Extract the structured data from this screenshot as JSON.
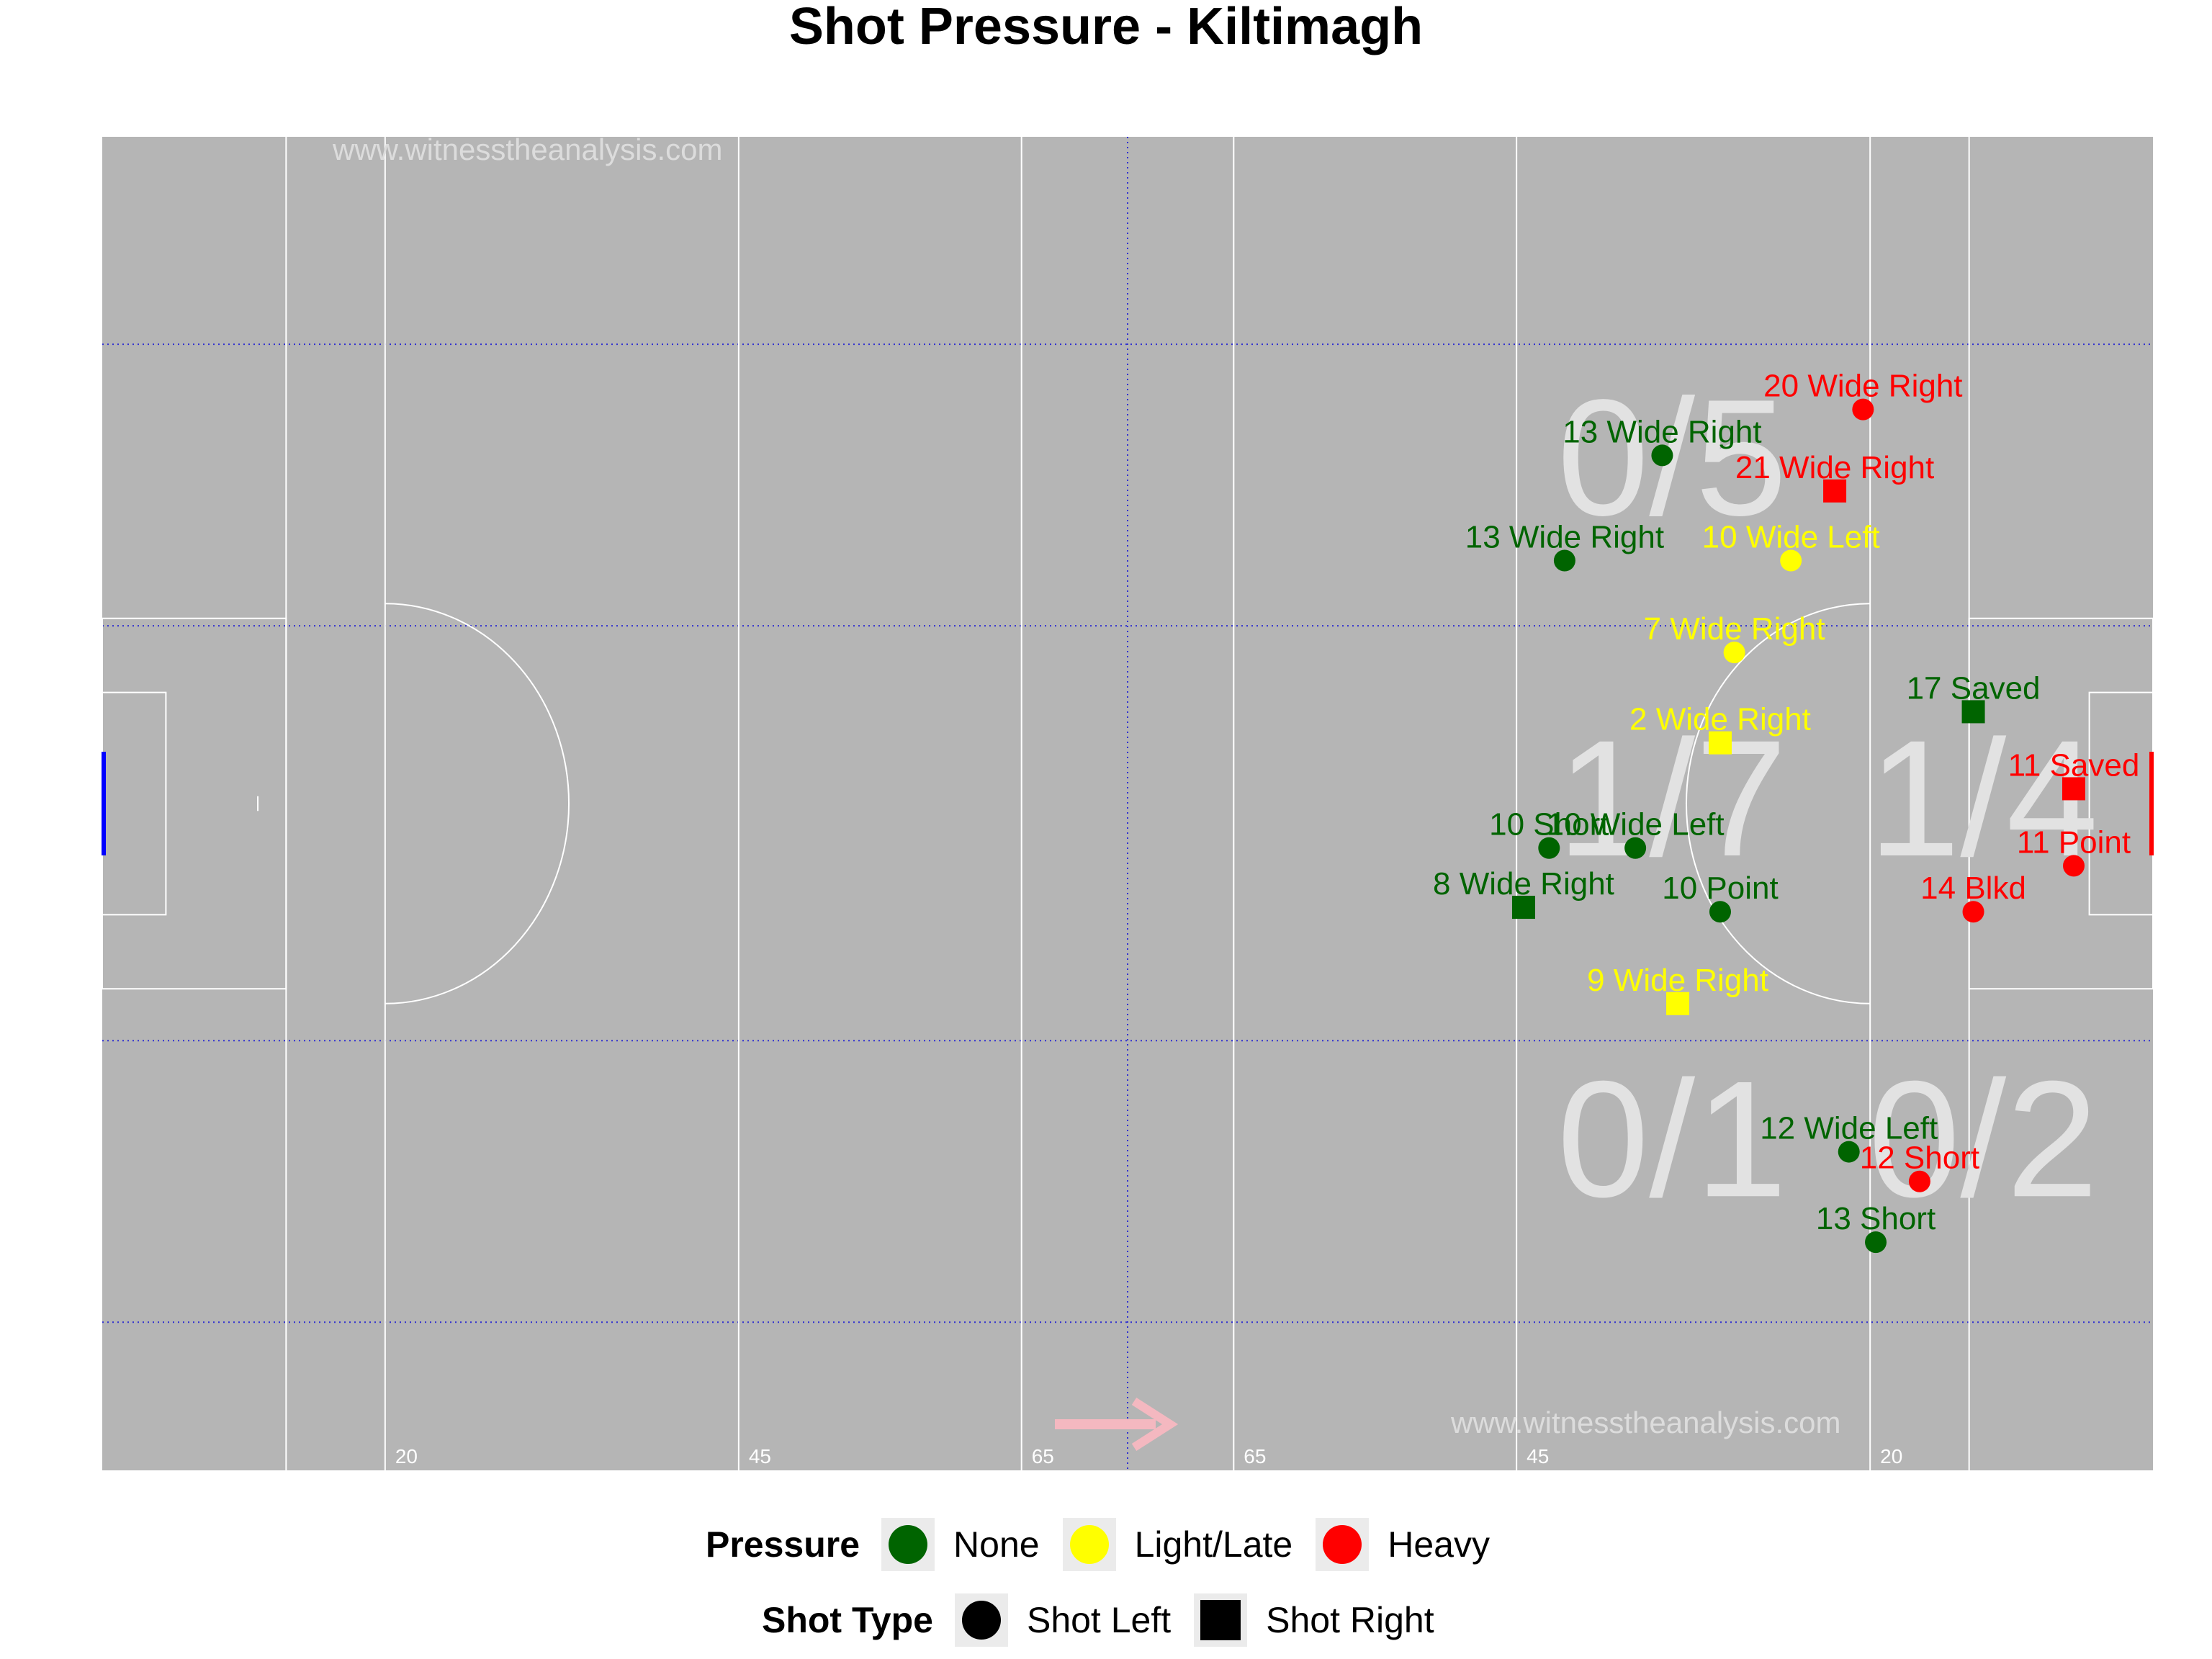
{
  "title": "Shot Pressure - Kiltimagh",
  "watermark": "www.witnesstheanalysis.com",
  "colors": {
    "pitch": "#b5b5b5",
    "line": "#ffffff",
    "zone": "#3030d0",
    "none": "#006400",
    "light": "#ffff00",
    "heavy": "#ff0000",
    "zone_text": "#e2e2e2",
    "arrow": "#f4b8c0",
    "left_goal": "#0000ff",
    "right_goal": "#ff0000"
  },
  "distance_markers": [
    "20",
    "45",
    "65",
    "65",
    "45",
    "20"
  ],
  "chart_data": {
    "type": "scatter",
    "title": "Shot Pressure - Kiltimagh",
    "xlim": [
      0,
      145
    ],
    "ylim": [
      0,
      90
    ],
    "grid": true,
    "legend_placement": "bottom",
    "zones": [
      {
        "label": "0/5",
        "x": 111,
        "y": 68
      },
      {
        "label": "1/7",
        "x": 111,
        "y": 45
      },
      {
        "label": "1/4",
        "x": 133,
        "y": 45
      },
      {
        "label": "0/1",
        "x": 111,
        "y": 22
      },
      {
        "label": "0/2",
        "x": 133,
        "y": 22
      }
    ],
    "points": [
      {
        "x": 124.5,
        "y": 71.6,
        "pressure": "Heavy",
        "type": "Shot Left",
        "label": "20 Wide Right"
      },
      {
        "x": 110.3,
        "y": 68.5,
        "pressure": "None",
        "type": "Shot Left",
        "label": "13 Wide Right"
      },
      {
        "x": 122.5,
        "y": 66.1,
        "pressure": "Heavy",
        "type": "Shot Right",
        "label": "21 Wide Right"
      },
      {
        "x": 103.4,
        "y": 61.4,
        "pressure": "None",
        "type": "Shot Left",
        "label": "13 Wide Right"
      },
      {
        "x": 119.4,
        "y": 61.4,
        "pressure": "Light/Late",
        "type": "Shot Left",
        "label": "10 Wide Left"
      },
      {
        "x": 115.4,
        "y": 55.2,
        "pressure": "Light/Late",
        "type": "Shot Left",
        "label": "7 Wide Right"
      },
      {
        "x": 132.3,
        "y": 51.2,
        "pressure": "None",
        "type": "Shot Right",
        "label": "17 Saved"
      },
      {
        "x": 114.4,
        "y": 49.1,
        "pressure": "Light/Late",
        "type": "Shot Right",
        "label": "2 Wide Right"
      },
      {
        "x": 139.4,
        "y": 46.0,
        "pressure": "Heavy",
        "type": "Shot Right",
        "label": "11 Saved"
      },
      {
        "x": 102.3,
        "y": 42.0,
        "pressure": "None",
        "type": "Shot Left",
        "label": "10 Short"
      },
      {
        "x": 108.4,
        "y": 42.0,
        "pressure": "None",
        "type": "Shot Left",
        "label": "10 Wide Left"
      },
      {
        "x": 139.4,
        "y": 40.8,
        "pressure": "Heavy",
        "type": "Shot Left",
        "label": "11 Point"
      },
      {
        "x": 100.5,
        "y": 38.0,
        "pressure": "None",
        "type": "Shot Right",
        "label": "8 Wide Right"
      },
      {
        "x": 114.4,
        "y": 37.7,
        "pressure": "None",
        "type": "Shot Left",
        "label": "10 Point"
      },
      {
        "x": 132.3,
        "y": 37.7,
        "pressure": "Heavy",
        "type": "Shot Left",
        "label": "14 Blkd"
      },
      {
        "x": 111.4,
        "y": 31.5,
        "pressure": "Light/Late",
        "type": "Shot Right",
        "label": "9 Wide Right"
      },
      {
        "x": 123.5,
        "y": 21.5,
        "pressure": "None",
        "type": "Shot Left",
        "label": "12 Wide Left"
      },
      {
        "x": 128.5,
        "y": 19.5,
        "pressure": "Heavy",
        "type": "Shot Left",
        "label": "12 Short"
      },
      {
        "x": 125.4,
        "y": 15.4,
        "pressure": "None",
        "type": "Shot Left",
        "label": "13 Short"
      }
    ]
  },
  "legend": {
    "pressure_title": "Pressure",
    "pressure_items": [
      "None",
      "Light/Late",
      "Heavy"
    ],
    "type_title": "Shot Type",
    "type_items": [
      "Shot Left",
      "Shot Right"
    ]
  }
}
